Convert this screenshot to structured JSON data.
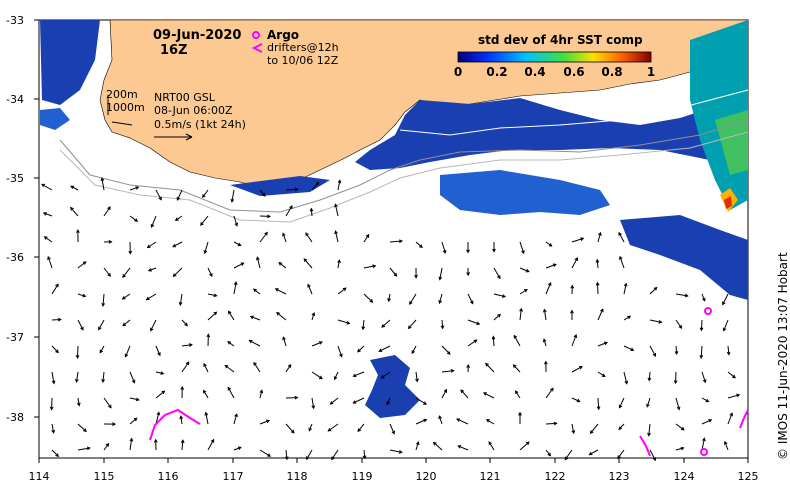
{
  "map": {
    "date": "09-Jun-2020",
    "hour": "16Z",
    "argo_label": "Argo",
    "drifter_label_1": "drifters@12h",
    "drifter_label_2": "to 10/06 12Z",
    "gsl_line_1": "NRT00 GSL",
    "gsl_line_2": "08-Jun 06:00Z",
    "gsl_line_3": "0.5m/s (1kt 24h)",
    "contour_200": "200m",
    "contour_1000": "1000m",
    "colorbar_title": "std dev of 4hr SST comp",
    "colorbar_ticks": [
      "0",
      "0.2",
      "0.4",
      "0.6",
      "0.8",
      "1"
    ],
    "credit": "© IMOS 11-Jun-2020 13:07 Hobart",
    "lat_ticks": [
      "-33",
      "-34",
      "-35",
      "-36",
      "-37",
      "-38"
    ],
    "lon_ticks": [
      "114",
      "115",
      "116",
      "117",
      "118",
      "119",
      "120",
      "121",
      "122",
      "123",
      "124",
      "125"
    ],
    "colors": {
      "land": "#fcc993",
      "argo": "#ff00ff",
      "sst_low": "#000080",
      "sst_mid": "#00c0a0",
      "sst_high": "#ff4000"
    }
  }
}
